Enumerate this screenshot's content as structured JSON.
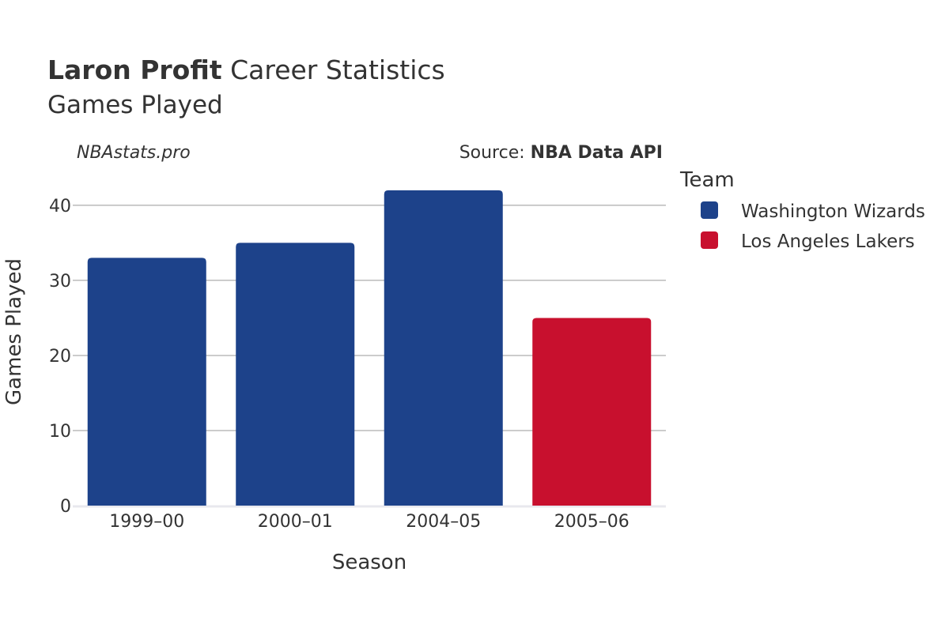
{
  "header": {
    "title_bold": "Laron Profit",
    "title_rest": "Career Statistics",
    "subtitle": "Games Played",
    "watermark": "NBAstats.pro",
    "source_prefix": "Source: ",
    "source_name": "NBA Data API"
  },
  "legend": {
    "title": "Team",
    "position": "right",
    "items": [
      {
        "label": "Washington Wizards",
        "color": "#1D428A"
      },
      {
        "label": "Los Angeles Lakers",
        "color": "#C8102E"
      }
    ]
  },
  "chart_data": {
    "type": "bar",
    "xlabel": "Season",
    "ylabel": "Games Played",
    "categories": [
      "1999–00",
      "2000–01",
      "2004–05",
      "2005–06"
    ],
    "values": [
      33,
      35,
      42,
      25
    ],
    "teams": [
      "Washington Wizards",
      "Washington Wizards",
      "Washington Wizards",
      "Los Angeles Lakers"
    ],
    "series": [
      {
        "name": "Washington Wizards",
        "color": "#1D428A",
        "values": [
          33,
          35,
          42,
          null
        ]
      },
      {
        "name": "Los Angeles Lakers",
        "color": "#C8102E",
        "values": [
          null,
          null,
          null,
          25
        ]
      }
    ],
    "y_ticks": [
      0,
      10,
      20,
      30,
      40
    ],
    "ylim": [
      0,
      44.2
    ],
    "grid": true
  }
}
